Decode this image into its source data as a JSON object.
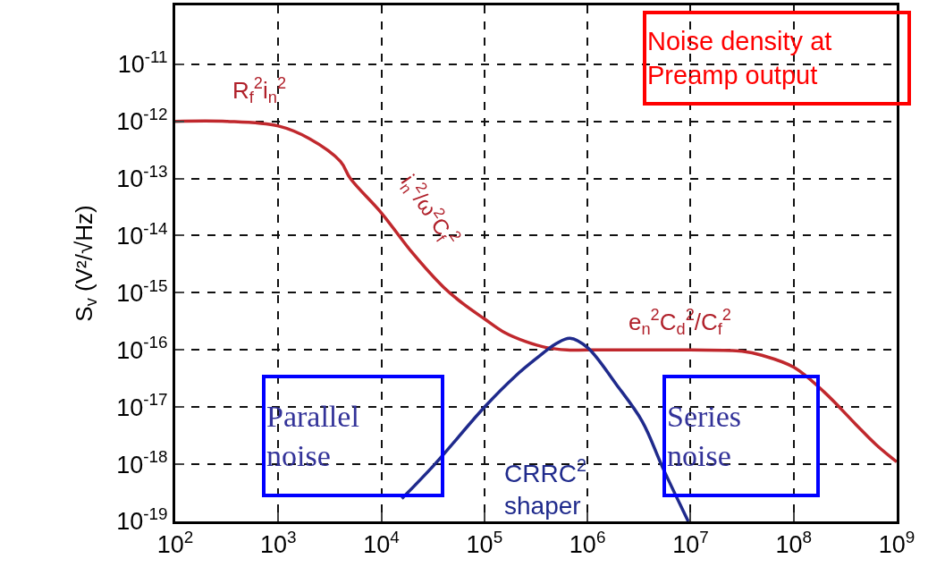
{
  "chart_data": {
    "type": "line",
    "ylabel": "S$_{v}$ (V²/√Hz)",
    "log": "xy",
    "grid": true,
    "line_style": "solid",
    "marker": "none",
    "xlim": [
      100,
      1000000000
    ],
    "ylim": [
      1e-19,
      1.07e-10
    ],
    "xticks": [
      {
        "value": 100,
        "label": "10$^{2}$"
      },
      {
        "value": 1000,
        "label": "10$^{3}$"
      },
      {
        "value": 10000,
        "label": "10$^{4}$"
      },
      {
        "value": 100000,
        "label": "10$^{5}$"
      },
      {
        "value": 1000000,
        "label": "10$^{6}$"
      },
      {
        "value": 10000000,
        "label": "10$^{7}$"
      },
      {
        "value": 100000000,
        "label": "10$^{8}$"
      },
      {
        "value": 1000000000,
        "label": "10$^{9}$"
      }
    ],
    "yticks": [
      {
        "value": 1e-19,
        "label": "10$^{-19}$"
      },
      {
        "value": 1e-18,
        "label": "10$^{-18}$"
      },
      {
        "value": 1e-17,
        "label": "10$^{-17}$"
      },
      {
        "value": 1e-16,
        "label": "10$^{-16}$"
      },
      {
        "value": 1e-15,
        "label": "10$^{-15}$"
      },
      {
        "value": 1e-14,
        "label": "10$^{-14}$"
      },
      {
        "value": 1e-13,
        "label": "10$^{-13}$"
      },
      {
        "value": 1e-12,
        "label": "10$^{-12}$"
      },
      {
        "value": 1e-11,
        "label": "10$^{-11}$"
      }
    ],
    "series": [
      {
        "color": "#c0282d",
        "x": [
          100,
          316,
          1000,
          2000,
          4000,
          5000,
          10000,
          20000,
          40000,
          63000,
          100000,
          158000,
          251000,
          398000,
          631000,
          1000000,
          10000000,
          31600000,
          50000000,
          100000000,
          200000000,
          400000000,
          631000000,
          1000000000
        ],
        "values": [
          1e-12,
          1e-12,
          8.3e-13,
          5e-13,
          2e-13,
          1e-13,
          2.5e-14,
          5e-15,
          1.26e-15,
          6.3e-16,
          3.5e-16,
          2e-16,
          1.4e-16,
          1.1e-16,
          1e-16,
          1e-16,
          1e-16,
          9.5e-17,
          8e-17,
          5e-17,
          1.8e-17,
          5e-18,
          2.2e-18,
          1.1e-18
        ]
      },
      {
        "color": "#1f2a8c",
        "x": [
          15800,
          33000,
          100000,
          200000,
          316000,
          500000,
          676000,
          1000000,
          1900000,
          3400000,
          5400000,
          9500000
        ],
        "values": [
          2.5e-19,
          1e-18,
          1e-17,
          3.5e-17,
          7e-17,
          1.3e-16,
          1.6e-16,
          1.1e-16,
          2.5e-17,
          5.6e-18,
          8.5e-19,
          1e-19
        ]
      }
    ],
    "annotations": [
      "Noise density at\nPreamp output",
      "Parallel\nnoise",
      "Series\nnoise",
      "R$_{f}$$^{2}$i$_{n}$$^{2}$",
      "i$_{n}$$^{2}$/ω$^{2}$C$_{f}$$^{2}$",
      "e$_{n}$$^{2}$C$_{d}$$^{2}$/C$_{f}$$^{2}$",
      "CRRC$^{2}$\nshaper"
    ]
  }
}
